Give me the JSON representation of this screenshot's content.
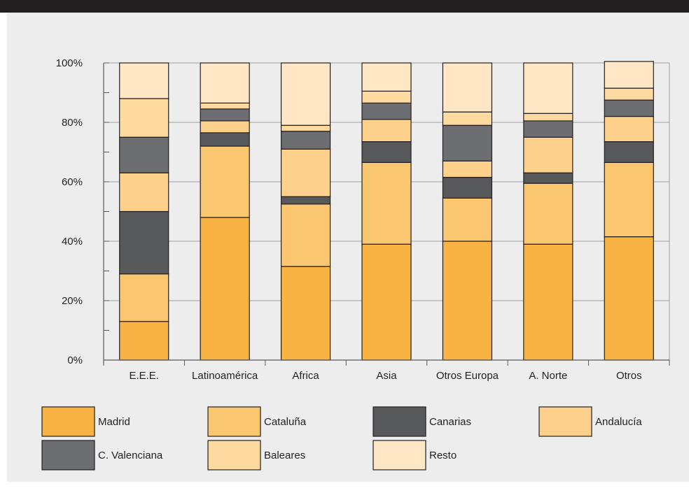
{
  "title": "",
  "chart_data": {
    "type": "bar",
    "stacked": true,
    "title": "",
    "xlabel": "",
    "ylabel": "",
    "ylim": [
      0,
      100
    ],
    "y_ticks": [
      "0%",
      "20%",
      "40%",
      "60%",
      "80%",
      "100%"
    ],
    "grid": true,
    "legend_position": "bottom",
    "categories": [
      "E.E.E.",
      "Latinoamérica",
      "Africa",
      "Asia",
      "Otros Europa",
      "A. Norte",
      "Otros"
    ],
    "series": [
      {
        "name": "Madrid",
        "color": "#f9b343",
        "values": [
          13,
          48,
          31.5,
          39,
          40,
          39,
          41.5
        ]
      },
      {
        "name": "Cataluña",
        "color": "#fbc670",
        "values": [
          16,
          24,
          21,
          27.5,
          14.5,
          20.5,
          25
        ]
      },
      {
        "name": "Canarias",
        "color": "#58595b",
        "values": [
          21,
          4.5,
          2.5,
          7,
          7,
          3.5,
          7
        ]
      },
      {
        "name": "Andalucía",
        "color": "#fdd08c",
        "values": [
          13,
          4,
          16,
          7.5,
          5.5,
          12,
          8.5
        ]
      },
      {
        "name": "C. Valenciana",
        "color": "#6d6e71",
        "values": [
          12,
          4,
          6,
          5.5,
          12,
          5.5,
          5.5
        ]
      },
      {
        "name": "Baleares",
        "color": "#fed9a0",
        "values": [
          13,
          2,
          2,
          4,
          4.5,
          2.5,
          4
        ]
      },
      {
        "name": "Resto",
        "color": "#ffe6c4",
        "values": [
          12,
          13.5,
          21,
          9.5,
          16.5,
          17,
          9
        ]
      }
    ]
  }
}
